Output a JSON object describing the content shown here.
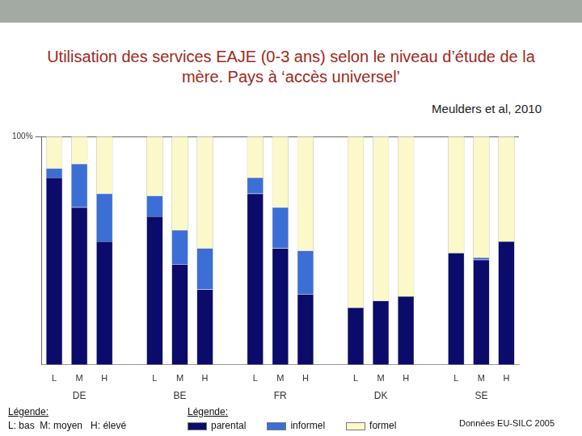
{
  "chart_data": {
    "type": "bar",
    "title": "Utilisation des services EAJE (0-3 ans) selon le niveau d’étude de la mère. Pays à ‘accès universel’",
    "citation": "Meulders et al, 2010",
    "source": "Données EU-SILC 2005",
    "category_legend": {
      "title": "Légende:",
      "text": "L: bas  M: moyen   H: élevé"
    },
    "legend_title": "Légende:",
    "categories": [
      "L",
      "M",
      "H",
      null,
      "L",
      "M",
      "H",
      null,
      "L",
      "M",
      "H",
      null,
      "L",
      "M",
      "H",
      null,
      "L",
      "M",
      "H"
    ],
    "groups": [
      "DE",
      "BE",
      "FR",
      "DK",
      "SE"
    ],
    "series": [
      {
        "name": "parental",
        "color": "#0b0b6b",
        "values": [
          82,
          69,
          54,
          null,
          65,
          44,
          33,
          null,
          75,
          51,
          31,
          null,
          25,
          28,
          30,
          null,
          49,
          46,
          54
        ]
      },
      {
        "name": "informel",
        "color": "#3b6fd6",
        "values": [
          4,
          19,
          21,
          null,
          9,
          15,
          18,
          null,
          7,
          18,
          19,
          null,
          0,
          0,
          0,
          null,
          0,
          1,
          0
        ]
      },
      {
        "name": "formel",
        "color": "#fbf8c9",
        "values": [
          14,
          12,
          25,
          null,
          26,
          41,
          49,
          null,
          18,
          31,
          50,
          null,
          75,
          72,
          70,
          null,
          51,
          53,
          46
        ]
      }
    ],
    "stacked": true,
    "ylim": [
      0,
      100
    ],
    "yticks": [
      {
        "value": 100,
        "label": "100%"
      }
    ],
    "grid": true,
    "legend": "bottom"
  }
}
